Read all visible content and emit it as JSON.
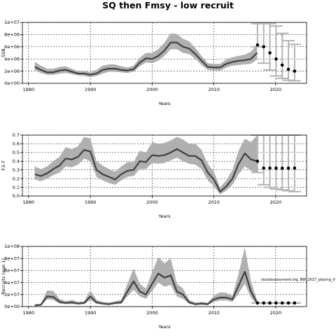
{
  "figure": {
    "title": "SQ then Fmsy - low recruit",
    "note": "stockassessment.org, BW_2017_playing_0"
  },
  "chart_data": [
    {
      "type": "line",
      "name": "ssb",
      "xlabel": "Years",
      "ylabel": "SSB",
      "xlim": [
        1979,
        2025
      ],
      "ylim": [
        0,
        10000000
      ],
      "xticks": [
        1980,
        1990,
        2000,
        2010,
        2020
      ],
      "xtick_labels": [
        "1980",
        "1990",
        "2000",
        "2010",
        "2020"
      ],
      "yticks": [
        0,
        2000000,
        4000000,
        6000000,
        8000000,
        10000000
      ],
      "ytick_labels": [
        "0e+00",
        "2e+06",
        "4e+06",
        "6e+06",
        "8e+06",
        "1e+07"
      ],
      "grid": true,
      "years": [
        1981,
        1982,
        1983,
        1984,
        1985,
        1986,
        1987,
        1988,
        1989,
        1990,
        1991,
        1992,
        1993,
        1994,
        1995,
        1996,
        1997,
        1998,
        1999,
        2000,
        2001,
        2002,
        2003,
        2004,
        2005,
        2006,
        2007,
        2008,
        2009,
        2010,
        2011,
        2012,
        2013,
        2014,
        2015,
        2016,
        2017
      ],
      "estimate": [
        2700000,
        2200000,
        1800000,
        1800000,
        2100000,
        2200000,
        1900000,
        1600000,
        1600000,
        1400000,
        1600000,
        2200000,
        2400000,
        2400000,
        2200000,
        2100000,
        2300000,
        3400000,
        4100000,
        4000000,
        4500000,
        5400000,
        6700000,
        6700000,
        6000000,
        5700000,
        4800000,
        3700000,
        2700000,
        2600000,
        2600000,
        3200000,
        3500000,
        3700000,
        3800000,
        4000000,
        5000000
      ],
      "lower": [
        2100000,
        1700000,
        1400000,
        1400000,
        1600000,
        1700000,
        1500000,
        1300000,
        1200000,
        1000000,
        1200000,
        1600000,
        1900000,
        1900000,
        1800000,
        1700000,
        1900000,
        2800000,
        3400000,
        3300000,
        3700000,
        4500000,
        5600000,
        5600000,
        5000000,
        4800000,
        4000000,
        3000000,
        2200000,
        2100000,
        2100000,
        2600000,
        2900000,
        3000000,
        3100000,
        3200000,
        3900000
      ],
      "upper": [
        3500000,
        2900000,
        2400000,
        2400000,
        2700000,
        2800000,
        2400000,
        2000000,
        2000000,
        1800000,
        2200000,
        2900000,
        3100000,
        3100000,
        2800000,
        2600000,
        2900000,
        4200000,
        5000000,
        5000000,
        5600000,
        6700000,
        8200000,
        8100000,
        7300000,
        6900000,
        5800000,
        4500000,
        3300000,
        3200000,
        3200000,
        3900000,
        4300000,
        4500000,
        4700000,
        5200000,
        6400000
      ],
      "forecast_years": [
        2017,
        2018,
        2019,
        2020,
        2021,
        2022,
        2023
      ],
      "forecast_median": [
        6300000,
        6000000,
        5000000,
        4000000,
        3000000,
        2300000,
        2000000
      ],
      "forecast_low": [
        6000000,
        3300000,
        2200000,
        1200000,
        800000,
        500000,
        400000
      ],
      "forecast_high": [
        9800000,
        9800000,
        9800000,
        9400000,
        8200000,
        7000000,
        6400000
      ]
    },
    {
      "type": "line",
      "name": "fbar",
      "xlabel": "Years",
      "ylabel": "F3-7",
      "xlim": [
        1979,
        2025
      ],
      "ylim": [
        0,
        0.7
      ],
      "xticks": [
        1980,
        1990,
        2000,
        2010,
        2020
      ],
      "xtick_labels": [
        "1980",
        "1990",
        "2000",
        "2010",
        "2020"
      ],
      "yticks": [
        0,
        0.1,
        0.2,
        0.3,
        0.4,
        0.5,
        0.6,
        0.7
      ],
      "ytick_labels": [
        "0.0",
        "0.1",
        "0.2",
        "0.3",
        "0.4",
        "0.5",
        "0.6",
        "0.7"
      ],
      "grid": true,
      "years": [
        1981,
        1982,
        1983,
        1984,
        1985,
        1986,
        1987,
        1988,
        1989,
        1990,
        1991,
        1992,
        1993,
        1994,
        1995,
        1996,
        1997,
        1998,
        1999,
        2000,
        2001,
        2002,
        2003,
        2004,
        2005,
        2006,
        2007,
        2008,
        2009,
        2010,
        2011,
        2012,
        2013,
        2014,
        2015,
        2016,
        2017
      ],
      "estimate": [
        0.25,
        0.23,
        0.26,
        0.31,
        0.35,
        0.43,
        0.42,
        0.45,
        0.53,
        0.51,
        0.3,
        0.25,
        0.22,
        0.19,
        0.25,
        0.29,
        0.3,
        0.4,
        0.39,
        0.47,
        0.46,
        0.47,
        0.5,
        0.54,
        0.5,
        0.46,
        0.46,
        0.41,
        0.27,
        0.19,
        0.05,
        0.11,
        0.2,
        0.37,
        0.49,
        0.42,
        0.4
      ],
      "lower": [
        0.19,
        0.17,
        0.2,
        0.24,
        0.27,
        0.34,
        0.33,
        0.36,
        0.43,
        0.4,
        0.22,
        0.18,
        0.15,
        0.13,
        0.18,
        0.22,
        0.23,
        0.31,
        0.31,
        0.38,
        0.37,
        0.38,
        0.41,
        0.44,
        0.4,
        0.37,
        0.36,
        0.31,
        0.18,
        0.11,
        0.02,
        0.06,
        0.13,
        0.25,
        0.34,
        0.29,
        0.26
      ],
      "upper": [
        0.34,
        0.31,
        0.34,
        0.4,
        0.45,
        0.56,
        0.54,
        0.57,
        0.68,
        0.66,
        0.4,
        0.35,
        0.31,
        0.28,
        0.34,
        0.39,
        0.39,
        0.52,
        0.5,
        0.62,
        0.6,
        0.61,
        0.64,
        0.68,
        0.65,
        0.6,
        0.6,
        0.53,
        0.37,
        0.28,
        0.1,
        0.18,
        0.3,
        0.52,
        0.66,
        0.62,
        0.7
      ],
      "forecast_years": [
        2017,
        2018,
        2019,
        2020,
        2021,
        2022,
        2023
      ],
      "forecast_median": [
        0.4,
        0.32,
        0.32,
        0.32,
        0.32,
        0.32,
        0.32
      ],
      "forecast_low": [
        0.27,
        0.13,
        0.1,
        0.08,
        0.07,
        0.06,
        0.05
      ],
      "forecast_high": [
        0.7,
        0.7,
        0.7,
        0.7,
        0.7,
        0.7,
        0.7
      ]
    },
    {
      "type": "line",
      "name": "recruits",
      "xlabel": "Years",
      "ylabel": "Recruits (age 1)",
      "xlim": [
        1979,
        2025
      ],
      "ylim": [
        0,
        100000000
      ],
      "xticks": [
        1980,
        1990,
        2000,
        2010,
        2020
      ],
      "xtick_labels": [
        "1980",
        "1990",
        "2000",
        "2010",
        "2020"
      ],
      "yticks": [
        0,
        20000000,
        40000000,
        60000000,
        80000000,
        100000000
      ],
      "ytick_labels": [
        "0e+00",
        "2e+07",
        "4e+07",
        "6e+07",
        "8e+07",
        "1e+08"
      ],
      "grid": true,
      "years": [
        1981,
        1982,
        1983,
        1984,
        1985,
        1986,
        1987,
        1988,
        1989,
        1990,
        1991,
        1992,
        1993,
        1994,
        1995,
        1996,
        1997,
        1998,
        1999,
        2000,
        2001,
        2002,
        2003,
        2004,
        2005,
        2006,
        2007,
        2008,
        2009,
        2010,
        2011,
        2012,
        2013,
        2014,
        2015,
        2016,
        2017
      ],
      "estimate": [
        2000000,
        3000000,
        17000000,
        16000000,
        8000000,
        6000000,
        7000000,
        5000000,
        6000000,
        17000000,
        7000000,
        5000000,
        4000000,
        6000000,
        7000000,
        25000000,
        42000000,
        25000000,
        20000000,
        38000000,
        55000000,
        48000000,
        52000000,
        25000000,
        20000000,
        7000000,
        4000000,
        5000000,
        4000000,
        12000000,
        15000000,
        15000000,
        12000000,
        35000000,
        58000000,
        25000000,
        6000000
      ],
      "lower": [
        1000000,
        2000000,
        12000000,
        11000000,
        5000000,
        4000000,
        4500000,
        3500000,
        4000000,
        11000000,
        4500000,
        3500000,
        2500000,
        4000000,
        4500000,
        17000000,
        28000000,
        17000000,
        13000000,
        26000000,
        40000000,
        33000000,
        36000000,
        17000000,
        13000000,
        4500000,
        2500000,
        3000000,
        2500000,
        8000000,
        10000000,
        10000000,
        8000000,
        22000000,
        38000000,
        15000000,
        3000000
      ],
      "upper": [
        3500000,
        4500000,
        27000000,
        26000000,
        13000000,
        9000000,
        11000000,
        8000000,
        9000000,
        27000000,
        11000000,
        8000000,
        6500000,
        9000000,
        11000000,
        38000000,
        63000000,
        38000000,
        30000000,
        57000000,
        82000000,
        72000000,
        80000000,
        38000000,
        30000000,
        11000000,
        6500000,
        8000000,
        6500000,
        18000000,
        24000000,
        23000000,
        18000000,
        55000000,
        98000000,
        42000000,
        10000000
      ],
      "forecast_years": [
        2017,
        2018,
        2019,
        2020,
        2021,
        2022,
        2023
      ],
      "forecast_median": [
        6000000,
        6000000,
        6000000,
        6000000,
        6000000,
        6000000,
        6000000
      ],
      "forecast_low": [
        6000000,
        6000000,
        6000000,
        6000000,
        6000000,
        6000000,
        6000000
      ],
      "forecast_high": [
        6000000,
        6000000,
        6000000,
        6000000,
        6000000,
        6000000,
        6000000
      ]
    }
  ]
}
